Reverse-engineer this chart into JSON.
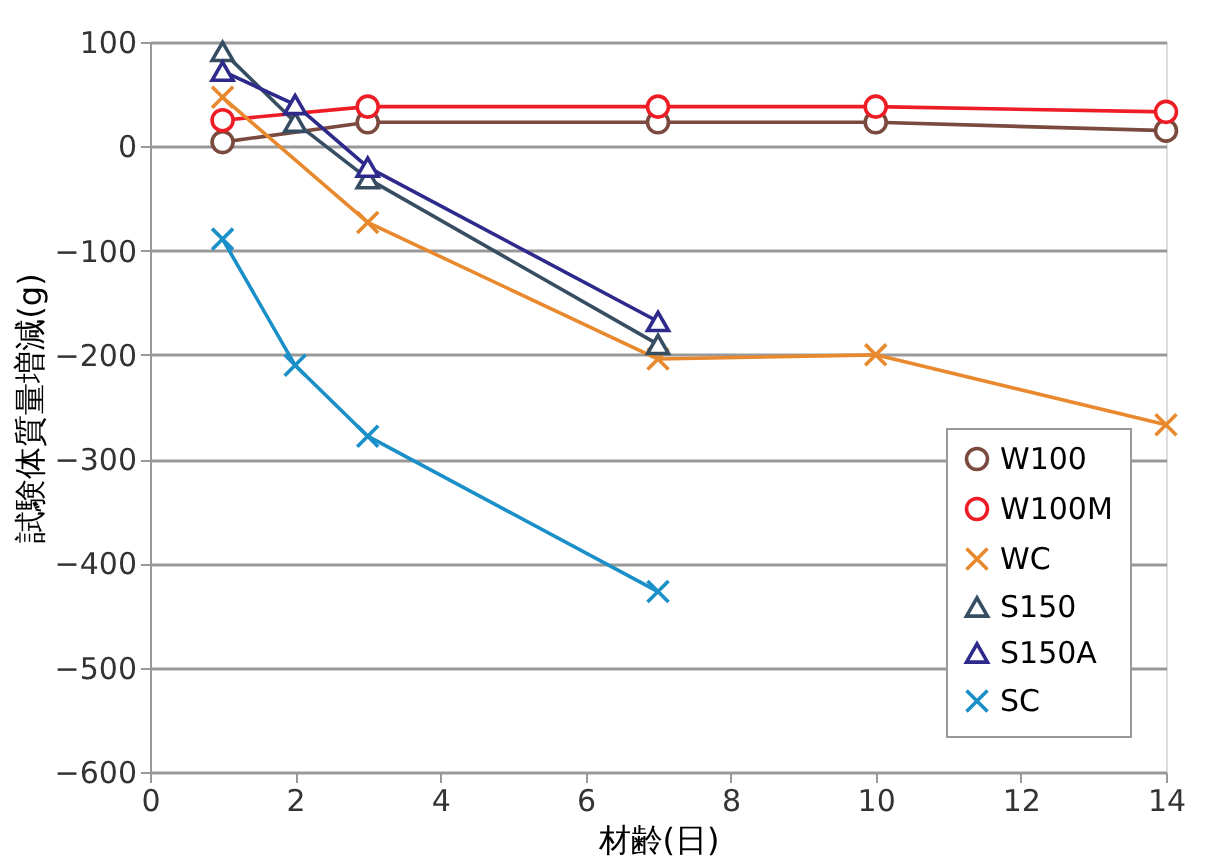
{
  "chart_data": {
    "type": "line",
    "xlabel": "材齢(日)",
    "ylabel": "試験体質量増減(g)",
    "xlim": [
      0,
      14
    ],
    "xticks": [
      0,
      2,
      4,
      6,
      8,
      10,
      12,
      14
    ],
    "ylim": [
      -600,
      100
    ],
    "yticks": [
      -600,
      -500,
      -400,
      -300,
      -200,
      -100,
      0,
      100
    ],
    "grid": "y",
    "legend": "bottom right",
    "series": [
      {
        "name": "W100",
        "color": "#7b4a3f",
        "marker": "circle",
        "x": [
          1,
          3,
          7,
          10,
          14
        ],
        "values": [
          4,
          23,
          23,
          23,
          15
        ]
      },
      {
        "name": "W100M",
        "color": "#ee1c25",
        "marker": "circle",
        "x": [
          1,
          3,
          7,
          10,
          14
        ],
        "values": [
          25,
          38,
          38,
          38,
          33
        ]
      },
      {
        "name": "WC",
        "color": "#e8892e",
        "marker": "cross",
        "x": [
          1,
          3,
          7,
          10,
          14
        ],
        "values": [
          47,
          -73,
          -204,
          -200,
          -267
        ]
      },
      {
        "name": "S150",
        "color": "#374e62",
        "marker": "triangle",
        "x": [
          1,
          2,
          3,
          7
        ],
        "values": [
          91,
          23,
          -31,
          -190
        ]
      },
      {
        "name": "S150A",
        "color": "#2e2a8c",
        "marker": "triangle",
        "x": [
          1,
          2,
          3,
          7
        ],
        "values": [
          72,
          40,
          -20,
          -168
        ]
      },
      {
        "name": "SC",
        "color": "#1a8fc8",
        "marker": "cross",
        "x": [
          1,
          2,
          3,
          7
        ],
        "values": [
          -89,
          -210,
          -278,
          -427
        ]
      }
    ]
  }
}
